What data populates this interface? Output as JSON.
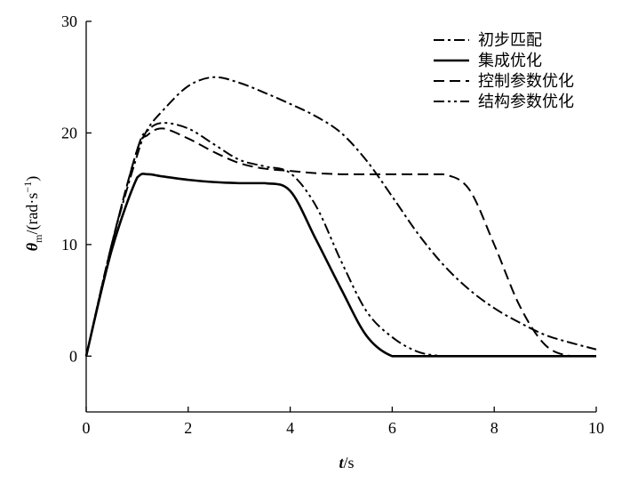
{
  "chart_data": {
    "type": "line",
    "xlabel": {
      "symbol": "t",
      "unit": "/s"
    },
    "ylabel": {
      "symbol": "θ",
      "subscript": "m",
      "unit": "/(rad·s",
      "superscript": "−1",
      "close": ")"
    },
    "x": [
      0,
      0.5,
      1,
      1.2,
      1.5,
      2,
      2.5,
      3,
      3.5,
      4,
      4.5,
      5,
      5.5,
      6,
      6.5,
      7,
      7.5,
      8,
      8.5,
      9,
      9.5,
      10
    ],
    "series": [
      {
        "name": "初步匹配",
        "color": "#000000",
        "linestyle": "dashdot",
        "values": [
          0,
          10,
          18,
          20.3,
          22,
          24.2,
          25,
          24.5,
          23.6,
          22.6,
          21.5,
          20,
          17.5,
          14.3,
          11,
          8.2,
          6,
          4.3,
          3,
          1.9,
          1.2,
          0.6
        ]
      },
      {
        "name": "集成优化",
        "color": "#000000",
        "linestyle": "solid",
        "values": [
          0,
          9.5,
          16,
          16.3,
          16.1,
          15.8,
          15.6,
          15.5,
          15.5,
          14.8,
          10.5,
          6,
          1.8,
          0,
          0,
          0,
          0,
          0,
          0,
          0,
          0,
          0
        ]
      },
      {
        "name": "控制参数优化",
        "color": "#000000",
        "linestyle": "dashed",
        "values": [
          0,
          10,
          18.5,
          19.8,
          20.4,
          19.5,
          18.3,
          17.3,
          16.8,
          16.6,
          16.4,
          16.3,
          16.3,
          16.3,
          16.3,
          16.3,
          15,
          10,
          4.5,
          1,
          0,
          0
        ]
      },
      {
        "name": "结构参数优化",
        "color": "#000000",
        "linestyle": "dashdotdot",
        "values": [
          0,
          10,
          18.5,
          20.2,
          20.9,
          20.4,
          19,
          17.6,
          17,
          16.4,
          13.5,
          8.5,
          4,
          1.7,
          0.4,
          0,
          0,
          0,
          0,
          0,
          0,
          0
        ]
      }
    ],
    "xlim": [
      0,
      10
    ],
    "xticks": [
      0,
      2,
      4,
      6,
      8,
      10
    ],
    "ylim": [
      -5,
      30
    ],
    "yticks": [
      0,
      10,
      20,
      30
    ],
    "legend": "upper right"
  }
}
